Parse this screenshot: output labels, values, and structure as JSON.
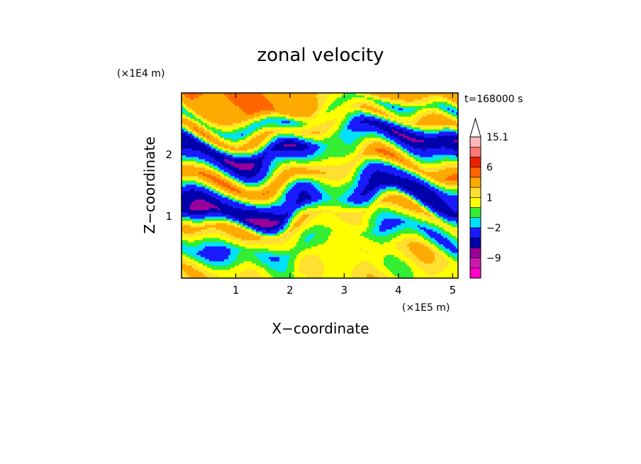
{
  "chart_data": {
    "type": "heatmap",
    "title": "zonal velocity",
    "xlabel": "X−coordinate",
    "ylabel": "Z−coordinate",
    "x_unit": "(×1E5 m)",
    "y_unit": "(×1E4 m)",
    "time_label": "t=168000 s",
    "xlim": [
      0,
      5.1
    ],
    "ylim": [
      0,
      3.0
    ],
    "x_ticks": [
      {
        "value": 1,
        "label": "1"
      },
      {
        "value": 2,
        "label": "2"
      },
      {
        "value": 3,
        "label": "3"
      },
      {
        "value": 4,
        "label": "4"
      },
      {
        "value": 5,
        "label": "5"
      }
    ],
    "y_ticks": [
      {
        "value": 1,
        "label": "1"
      },
      {
        "value": 2,
        "label": "2"
      }
    ],
    "grid": false,
    "colorbar": {
      "levels": [
        -15.1,
        -12,
        -9,
        -6,
        -4,
        -2,
        -1,
        0,
        1,
        2,
        4,
        6,
        9,
        12,
        15.1
      ],
      "colors": [
        "#ff00cc",
        "#cc1aad",
        "#990099",
        "#0000aa",
        "#1a1aff",
        "#00e0ff",
        "#33ee33",
        "#ffff00",
        "#ffe030",
        "#ffaa00",
        "#ff6600",
        "#ee2200",
        "#ff7777",
        "#ffbbbb"
      ],
      "tick_labels": [
        {
          "value": -9,
          "label": "−9"
        },
        {
          "value": -2,
          "label": "−2"
        },
        {
          "value": 1,
          "label": "1"
        },
        {
          "value": 6,
          "label": "6"
        },
        {
          "value": 15.1,
          "label": "15.1"
        }
      ]
    },
    "field_bands": [
      {
        "z": 0.3,
        "value": 0.5
      },
      {
        "z": 0.6,
        "value": -1.0
      },
      {
        "z": 0.95,
        "value": 1.2
      },
      {
        "z": 1.2,
        "value": -3.0
      },
      {
        "z": 1.45,
        "value": -1.5
      },
      {
        "z": 1.7,
        "value": 2.0
      },
      {
        "z": 1.95,
        "value": -1.0
      },
      {
        "z": 2.2,
        "value": -3.0
      },
      {
        "z": 2.45,
        "value": 1.5
      },
      {
        "z": 2.65,
        "value": -1.0
      },
      {
        "z": 2.85,
        "value": 2.0
      }
    ]
  }
}
